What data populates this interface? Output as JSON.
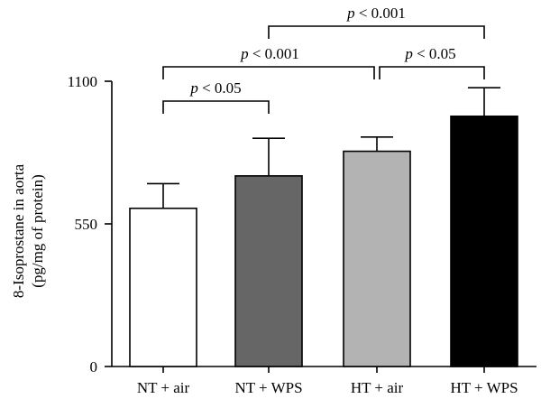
{
  "chart_data": {
    "type": "bar",
    "title": "",
    "xlabel": "",
    "ylabel": [
      "8-Isoprostane in aorta",
      "(pg/mg of protein)"
    ],
    "ylim": [
      0,
      1100
    ],
    "yticks": [
      0,
      550,
      1100
    ],
    "categories": [
      "NT + air",
      "NT + WPS",
      "HT + air",
      "HT + WPS"
    ],
    "values": [
      610,
      735,
      830,
      965
    ],
    "errors": [
      95,
      145,
      55,
      110
    ],
    "bar_colors": [
      "#ffffff",
      "#666666",
      "#b3b3b3",
      "#000000"
    ],
    "edge_color": "#000000",
    "grid": false,
    "legend": "none",
    "significance": [
      {
        "from": 0,
        "to": 1,
        "p": "p",
        "rest": " < 0.05",
        "level": 1
      },
      {
        "from": 0,
        "to": 2,
        "p": "p",
        "rest": " < 0.001",
        "level": 2
      },
      {
        "from": 2,
        "to": 3,
        "p": "p",
        "rest": " < 0.05",
        "level": 2
      },
      {
        "from": 1,
        "to": 3,
        "p": "p",
        "rest": " < 0.001",
        "level": 3
      }
    ]
  }
}
